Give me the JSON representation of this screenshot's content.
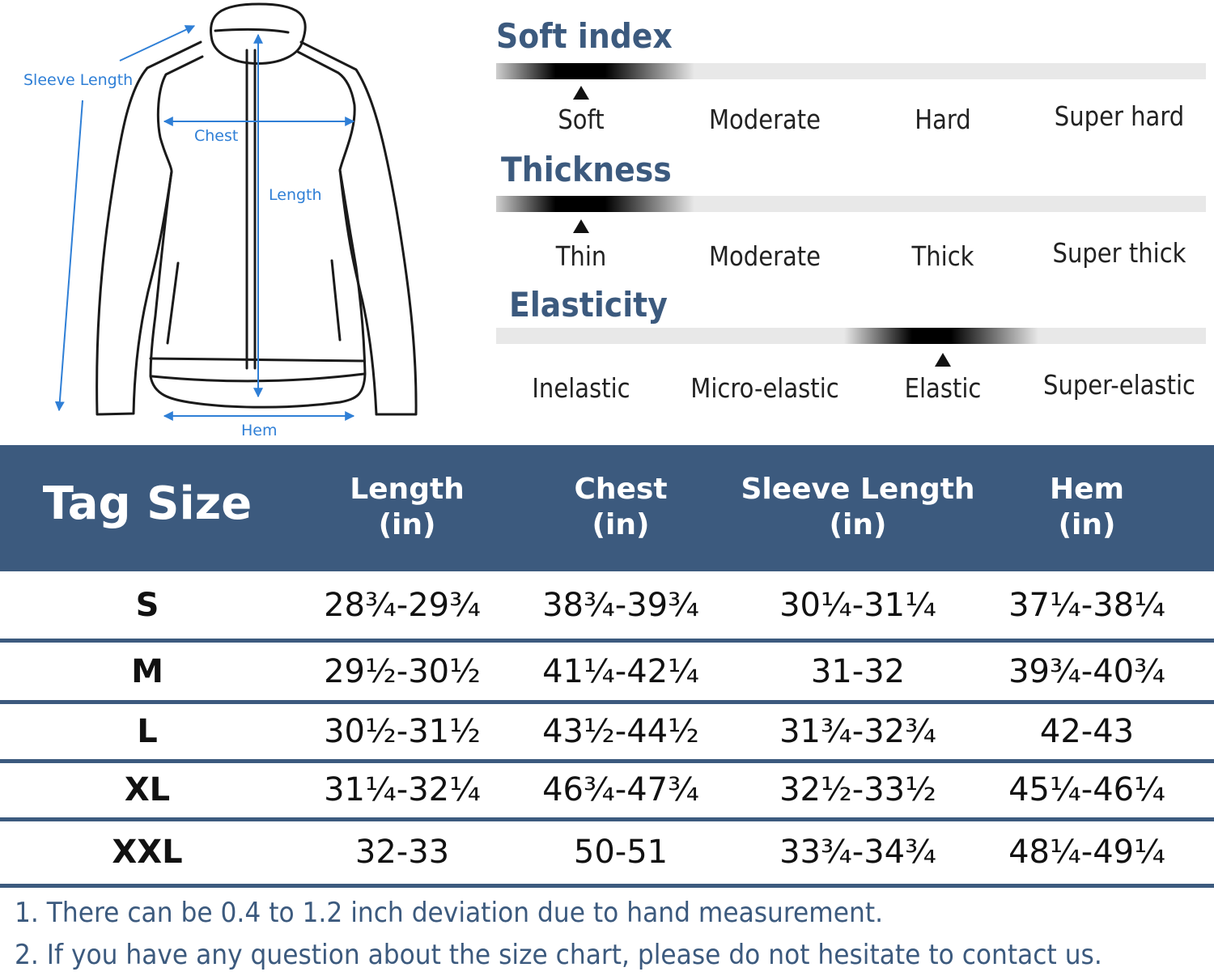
{
  "diagram": {
    "labels": {
      "sleeve_length": "Sleeve Length",
      "chest": "Chest",
      "length": "Length",
      "hem": "Hem"
    },
    "line_color": "#1a1a1a",
    "measure_color": "#2f7fd6"
  },
  "scales": [
    {
      "title": "Soft index",
      "levels": [
        "Soft",
        "Moderate",
        "Hard",
        "Super hard"
      ],
      "selected_index": 0
    },
    {
      "title": "Thickness",
      "levels": [
        "Thin",
        "Moderate",
        "Thick",
        "Super thick"
      ],
      "selected_index": 0
    },
    {
      "title": "Elasticity",
      "levels": [
        "Inelastic",
        "Micro-elastic",
        "Elastic",
        "Super-elastic"
      ],
      "selected_index": 2
    }
  ],
  "table": {
    "header_color": "#3c5a7e",
    "tag_header": "Tag Size",
    "columns": [
      {
        "name": "Length",
        "unit": "(in)"
      },
      {
        "name": "Chest",
        "unit": "(in)"
      },
      {
        "name": "Sleeve Length",
        "unit": "(in)"
      },
      {
        "name": "Hem",
        "unit": "(in)"
      }
    ],
    "rows": [
      {
        "size": "S",
        "values": [
          "28¾-29¾",
          "38¾-39¾",
          "30¼-31¼",
          "37¼-38¼"
        ]
      },
      {
        "size": "M",
        "values": [
          "29½-30½",
          "41¼-42¼",
          "31-32",
          "39¾-40¾"
        ]
      },
      {
        "size": "L",
        "values": [
          "30½-31½",
          "43½-44½",
          "31¾-32¾",
          "42-43"
        ]
      },
      {
        "size": "XL",
        "values": [
          "31¼-32¼",
          "46¾-47¾",
          "32½-33½",
          "45¼-46¼"
        ]
      },
      {
        "size": "XXL",
        "values": [
          "32-33",
          "50-51",
          "33¾-34¾",
          "48¼-49¼"
        ]
      }
    ]
  },
  "notes": [
    "1. There can be 0.4 to 1.2 inch deviation due to hand measurement.",
    "2. If you have any question about the size chart, please do not hesitate to contact us."
  ]
}
